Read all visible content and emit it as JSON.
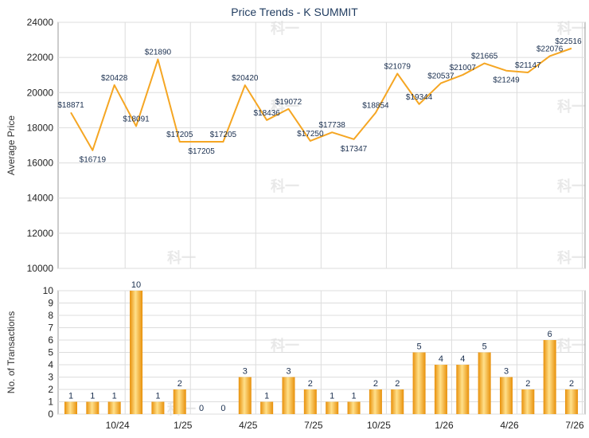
{
  "chart_data": [
    {
      "type": "line",
      "title": "Price Trends - K SUMMIT",
      "ylabel": "Average Price",
      "ylim": [
        10000,
        24000
      ],
      "yticks": [
        10000,
        12000,
        14000,
        16000,
        18000,
        20000,
        22000,
        24000
      ],
      "grid": true,
      "color": "#f5a623",
      "values": [
        18871,
        16719,
        20428,
        18091,
        21890,
        17205,
        17205,
        17205,
        20420,
        18436,
        19072,
        17250,
        17738,
        17347,
        18854,
        21079,
        19344,
        20537,
        21007,
        21665,
        21249,
        21147,
        22076,
        22516
      ],
      "labels": [
        "$18871",
        "$16719",
        "$20428",
        "$18091",
        "$21890",
        "$17205",
        "$17205",
        "$17205",
        "$20420",
        "$18436",
        "$19072",
        "$17250",
        "$17738",
        "$17347",
        "$18854",
        "$21079",
        "$19344",
        "$20537",
        "$21007",
        "$21665",
        "$21249",
        "$21147",
        "$22076",
        "$22516"
      ]
    },
    {
      "type": "bar",
      "ylabel": "No. of Transactions",
      "ylim": [
        0,
        10
      ],
      "yticks": [
        0,
        1,
        2,
        3,
        4,
        5,
        6,
        7,
        8,
        9,
        10
      ],
      "grid": true,
      "color": "#f5a623",
      "values": [
        1,
        1,
        1,
        10,
        1,
        2,
        0,
        0,
        3,
        1,
        3,
        2,
        1,
        1,
        2,
        2,
        5,
        4,
        4,
        5,
        3,
        2,
        6,
        2
      ],
      "xticks": [
        {
          "label": "10/24",
          "index": 2
        },
        {
          "label": "1/25",
          "index": 5
        },
        {
          "label": "4/25",
          "index": 8
        },
        {
          "label": "7/25",
          "index": 11
        },
        {
          "label": "10/25",
          "index": 14
        },
        {
          "label": "1/26",
          "index": 17
        },
        {
          "label": "4/26",
          "index": 20
        },
        {
          "label": "7/26",
          "index": 23
        }
      ]
    }
  ],
  "watermark": "科一"
}
